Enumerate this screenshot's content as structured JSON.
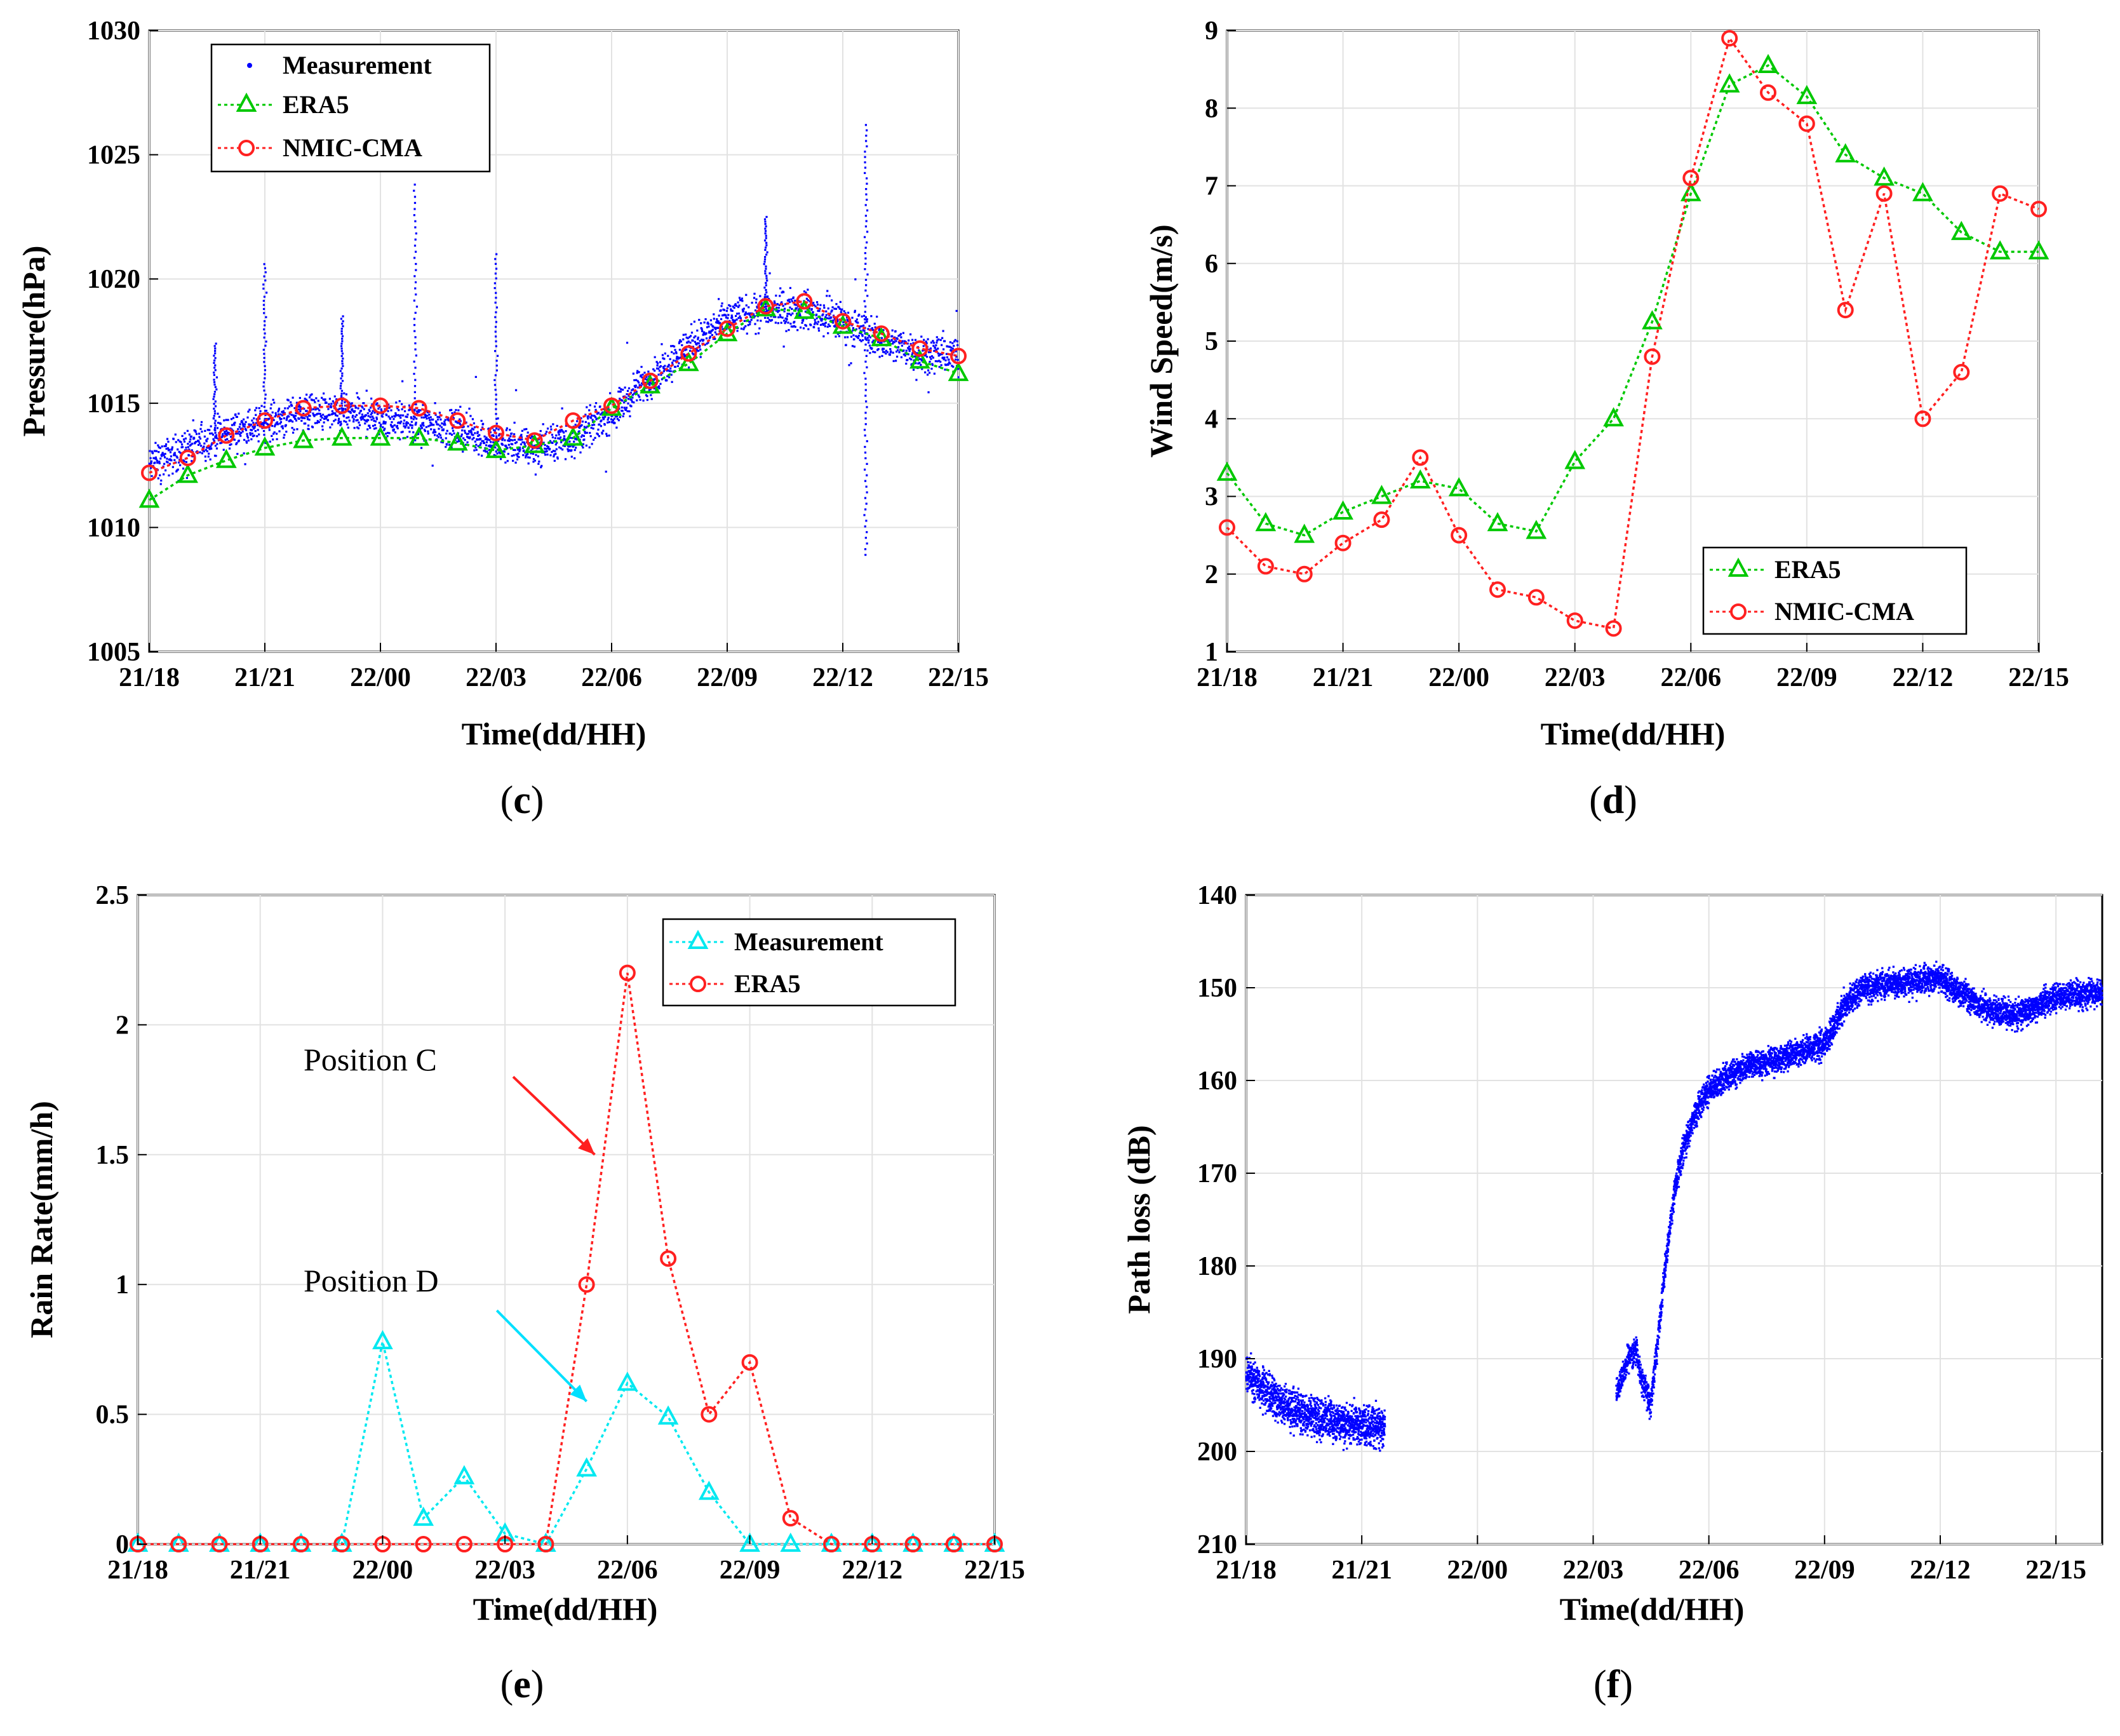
{
  "figure": {
    "captions": [
      {
        "open": "(",
        "letter": "c",
        "close": ")"
      },
      {
        "open": "(",
        "letter": "d",
        "close": ")"
      },
      {
        "open": "(",
        "letter": "e",
        "close": ")"
      },
      {
        "open": "(",
        "letter": "f",
        "close": ")"
      }
    ]
  },
  "chart_data": [
    {
      "id": "c",
      "type": "line",
      "xlabel": "Time(dd/HH)",
      "ylabel": "Pressure(hPa)",
      "xlim": [
        0,
        21
      ],
      "ylim": [
        1005,
        1030
      ],
      "grid": true,
      "legend_position": "top-left",
      "xticks": [
        0,
        3,
        6,
        9,
        12,
        15,
        18,
        21
      ],
      "xtick_labels": [
        "21/18",
        "21/21",
        "22/00",
        "22/03",
        "22/06",
        "22/09",
        "22/12",
        "22/15"
      ],
      "yticks": [
        1005,
        1010,
        1015,
        1020,
        1025,
        1030
      ],
      "ytick_labels": [
        "1005",
        "1010",
        "1015",
        "1020",
        "1025",
        "1030"
      ],
      "measurement": {
        "name": "Measurement",
        "color": "#0000ff",
        "style": "dots",
        "trend_x": [
          0,
          1,
          2,
          3,
          4,
          5,
          6,
          7,
          8,
          9,
          10,
          11,
          12,
          13,
          14,
          15,
          16,
          17,
          18,
          19,
          20,
          21
        ],
        "trend_y": [
          1012.5,
          1013.2,
          1013.8,
          1014.2,
          1014.6,
          1014.6,
          1014.4,
          1014.2,
          1014.0,
          1013.4,
          1013.2,
          1013.6,
          1014.6,
          1016.0,
          1017.3,
          1018.4,
          1018.8,
          1018.7,
          1018.3,
          1017.5,
          1017.1,
          1016.9
        ],
        "spread": 1.1,
        "spikes": [
          {
            "x": 3.0,
            "y": 1020.6
          },
          {
            "x": 1.7,
            "y": 1017.4
          },
          {
            "x": 5.0,
            "y": 1018.5
          },
          {
            "x": 6.9,
            "y": 1023.8
          },
          {
            "x": 16.0,
            "y": 1022.5
          },
          {
            "x": 18.6,
            "y": 1026.2
          },
          {
            "x": 18.6,
            "y": 1008.9
          },
          {
            "x": 9.0,
            "y": 1021.0
          }
        ]
      },
      "series": [
        {
          "name": "ERA5",
          "color": "#00c800",
          "marker": "triangle",
          "x": [
            0,
            1,
            2,
            3,
            4,
            5,
            6,
            7,
            8,
            9,
            10,
            11,
            12,
            13,
            14,
            15,
            16,
            17,
            18,
            19,
            20,
            21
          ],
          "values": [
            1011.1,
            1012.1,
            1012.7,
            1013.2,
            1013.5,
            1013.6,
            1013.6,
            1013.6,
            1013.4,
            1013.1,
            1013.3,
            1013.6,
            1014.8,
            1015.7,
            1016.6,
            1017.8,
            1018.8,
            1018.7,
            1018.1,
            1017.6,
            1016.7,
            1016.2
          ]
        },
        {
          "name": "NMIC-CMA",
          "color": "#ff2020",
          "marker": "circle",
          "x": [
            0,
            1,
            2,
            3,
            4,
            5,
            6,
            7,
            8,
            9,
            10,
            11,
            12,
            13,
            14,
            15,
            16,
            17,
            18,
            19,
            20,
            21
          ],
          "values": [
            1012.2,
            1012.8,
            1013.7,
            1014.3,
            1014.8,
            1014.9,
            1014.9,
            1014.8,
            1014.3,
            1013.8,
            1013.5,
            1014.3,
            1014.9,
            1015.9,
            1017.0,
            1018.0,
            1018.9,
            1019.1,
            1018.3,
            1017.8,
            1017.2,
            1016.9
          ]
        }
      ]
    },
    {
      "id": "d",
      "type": "line",
      "xlabel": "Time(dd/HH)",
      "ylabel": "Wind Speed(m/s)",
      "xlim": [
        0,
        21
      ],
      "ylim": [
        1,
        9
      ],
      "grid": true,
      "legend_position": "bottom-right",
      "xticks": [
        0,
        3,
        6,
        9,
        12,
        15,
        18,
        21
      ],
      "xtick_labels": [
        "21/18",
        "21/21",
        "22/00",
        "22/03",
        "22/06",
        "22/09",
        "22/12",
        "22/15"
      ],
      "yticks": [
        1,
        2,
        3,
        4,
        5,
        6,
        7,
        8,
        9
      ],
      "ytick_labels": [
        "1",
        "2",
        "3",
        "4",
        "5",
        "6",
        "7",
        "8",
        "9"
      ],
      "series": [
        {
          "name": "ERA5",
          "color": "#00c800",
          "marker": "triangle",
          "x": [
            0,
            1,
            2,
            3,
            4,
            5,
            6,
            7,
            8,
            9,
            10,
            11,
            12,
            13,
            14,
            15,
            16,
            17,
            18,
            19,
            20,
            21
          ],
          "values": [
            3.3,
            2.65,
            2.5,
            2.8,
            3.0,
            3.2,
            3.1,
            2.65,
            2.55,
            3.45,
            4.0,
            5.25,
            6.9,
            8.3,
            8.55,
            8.15,
            7.4,
            7.1,
            6.9,
            6.4,
            6.15,
            6.15
          ]
        },
        {
          "name": "NMIC-CMA",
          "color": "#ff2020",
          "marker": "circle",
          "x": [
            0,
            1,
            2,
            3,
            4,
            5,
            6,
            7,
            8,
            9,
            10,
            11,
            12,
            13,
            14,
            15,
            16,
            17,
            18,
            19,
            20,
            21
          ],
          "values": [
            2.6,
            2.1,
            2.0,
            2.4,
            2.7,
            3.5,
            2.5,
            1.8,
            1.7,
            1.4,
            1.3,
            4.8,
            7.1,
            8.9,
            8.2,
            7.8,
            5.4,
            6.9,
            4.0,
            4.6,
            6.9,
            6.7
          ]
        }
      ]
    },
    {
      "id": "e",
      "type": "line",
      "xlabel": "Time(dd/HH)",
      "ylabel": "Rain Rate(mm/h)",
      "xlim": [
        0,
        21
      ],
      "ylim": [
        0,
        2.5
      ],
      "grid": true,
      "legend_position": "top-right",
      "xticks": [
        0,
        3,
        6,
        9,
        12,
        15,
        18,
        21
      ],
      "xtick_labels": [
        "21/18",
        "21/21",
        "22/00",
        "22/03",
        "22/06",
        "22/09",
        "22/12",
        "22/15"
      ],
      "yticks": [
        0,
        0.5,
        1,
        1.5,
        2,
        2.5
      ],
      "ytick_labels": [
        "0",
        "0.5",
        "1",
        "1.5",
        "2",
        "2.5"
      ],
      "annotations": [
        {
          "text": "Position C",
          "arrow_to": [
            11.2,
            1.5
          ],
          "arrow_from": [
            9.2,
            1.8
          ],
          "color": "#ff2020"
        },
        {
          "text": "Position D",
          "arrow_to": [
            11.0,
            0.55
          ],
          "arrow_from": [
            8.8,
            0.9
          ],
          "color": "#00e0ff"
        }
      ],
      "series": [
        {
          "name": "Measurement",
          "color": "#00e8f0",
          "marker": "triangle",
          "x": [
            0,
            1,
            2,
            3,
            4,
            5,
            6,
            7,
            8,
            9,
            10,
            11,
            12,
            13,
            14,
            15,
            16,
            17,
            18,
            19,
            20,
            21
          ],
          "values": [
            0,
            0,
            0,
            0,
            0,
            0,
            0.78,
            0.1,
            0.26,
            0.04,
            0,
            0.29,
            0.62,
            0.49,
            0.2,
            0,
            0,
            0,
            0,
            0,
            0,
            0
          ]
        },
        {
          "name": "ERA5",
          "color": "#ff2020",
          "marker": "circle",
          "x": [
            0,
            1,
            2,
            3,
            4,
            5,
            6,
            7,
            8,
            9,
            10,
            11,
            12,
            13,
            14,
            15,
            16,
            17,
            18,
            19,
            20,
            21
          ],
          "values": [
            0,
            0,
            0,
            0,
            0,
            0,
            0,
            0,
            0,
            0,
            0,
            1.0,
            2.2,
            1.1,
            0.5,
            0.7,
            0.1,
            0,
            0,
            0,
            0,
            0
          ]
        }
      ]
    },
    {
      "id": "f",
      "type": "scatter",
      "xlabel": "Time(dd/HH)",
      "ylabel": "Path loss (dB)",
      "xlim": [
        0,
        22.2
      ],
      "ylim": [
        140,
        210
      ],
      "y_reversed": true,
      "grid": true,
      "xticks": [
        0,
        3,
        6,
        9,
        12,
        15,
        18,
        21
      ],
      "xtick_labels": [
        "21/18",
        "21/21",
        "22/00",
        "22/03",
        "22/06",
        "22/09",
        "22/12",
        "22/15"
      ],
      "yticks": [
        140,
        150,
        160,
        170,
        180,
        190,
        200,
        210
      ],
      "ytick_labels": [
        "140",
        "150",
        "160",
        "170",
        "180",
        "190",
        "200",
        "210"
      ],
      "color": "#0000ff",
      "segments": [
        {
          "x": [
            0,
            0.5,
            1,
            1.5,
            2,
            2.5,
            3,
            3.6
          ],
          "y": [
            191.5,
            193.5,
            195,
            196,
            196.5,
            197,
            197.2,
            197.5
          ],
          "spread": 3.2
        },
        {
          "x": [
            9.6,
            9.9,
            10.1,
            10.3,
            10.5,
            10.7,
            10.9,
            11.1,
            11.3,
            11.6,
            12,
            12.5,
            13,
            14,
            15,
            15.5,
            16,
            17,
            18,
            19,
            20,
            21,
            22.2
          ],
          "y": [
            194,
            190,
            189,
            193,
            195,
            187,
            179,
            172,
            168,
            164,
            161,
            159.5,
            158.5,
            157.5,
            156,
            152,
            150,
            149.5,
            149,
            152,
            153,
            151,
            150.5
          ],
          "spread": 2.2
        }
      ]
    }
  ]
}
